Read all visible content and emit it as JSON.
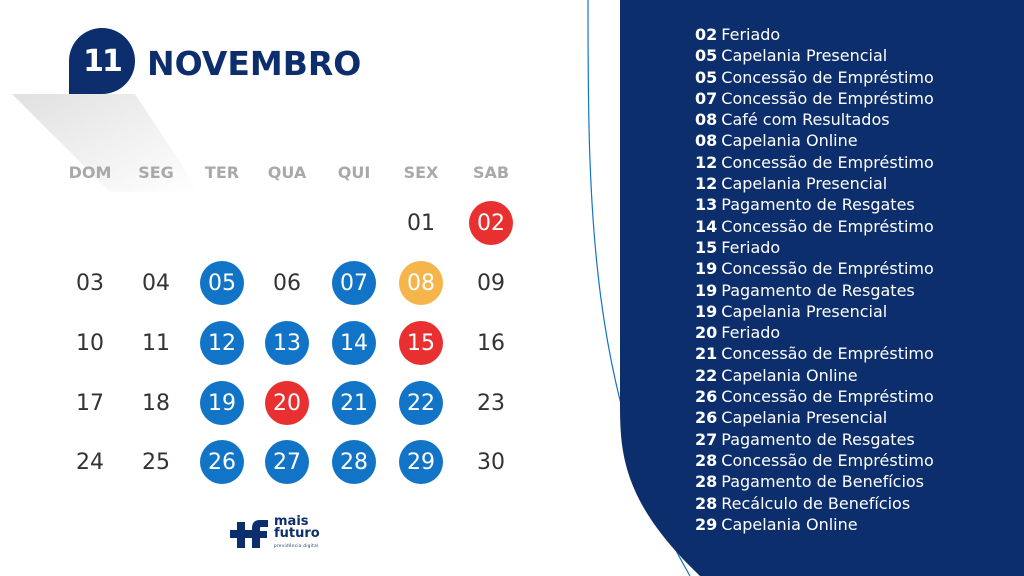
{
  "header": {
    "month_number": "11",
    "month_name": "NOVEMBRO"
  },
  "weekdays": [
    "DOM",
    "SEG",
    "TER",
    "QUA",
    "QUI",
    "SEX",
    "SAB"
  ],
  "colors": {
    "navy": "#0d2e6c",
    "blue": "#1274c7",
    "red": "#e83031",
    "orange": "#f5b54a",
    "weekday_gray": "#a9a9a9"
  },
  "weeks": [
    [
      null,
      null,
      null,
      null,
      null,
      {
        "day": "01",
        "mark": ""
      },
      {
        "day": "02",
        "mark": "red"
      }
    ],
    [
      {
        "day": "03",
        "mark": ""
      },
      {
        "day": "04",
        "mark": ""
      },
      {
        "day": "05",
        "mark": "blue"
      },
      {
        "day": "06",
        "mark": ""
      },
      {
        "day": "07",
        "mark": "blue"
      },
      {
        "day": "08",
        "mark": "orange"
      },
      {
        "day": "09",
        "mark": ""
      }
    ],
    [
      {
        "day": "10",
        "mark": ""
      },
      {
        "day": "11",
        "mark": ""
      },
      {
        "day": "12",
        "mark": "blue"
      },
      {
        "day": "13",
        "mark": "blue"
      },
      {
        "day": "14",
        "mark": "blue"
      },
      {
        "day": "15",
        "mark": "red"
      },
      {
        "day": "16",
        "mark": ""
      }
    ],
    [
      {
        "day": "17",
        "mark": ""
      },
      {
        "day": "18",
        "mark": ""
      },
      {
        "day": "19",
        "mark": "blue"
      },
      {
        "day": "20",
        "mark": "red"
      },
      {
        "day": "21",
        "mark": "blue"
      },
      {
        "day": "22",
        "mark": "blue"
      },
      {
        "day": "23",
        "mark": ""
      }
    ],
    [
      {
        "day": "24",
        "mark": ""
      },
      {
        "day": "25",
        "mark": ""
      },
      {
        "day": "26",
        "mark": "blue"
      },
      {
        "day": "27",
        "mark": "blue"
      },
      {
        "day": "28",
        "mark": "blue"
      },
      {
        "day": "29",
        "mark": "blue"
      },
      {
        "day": "30",
        "mark": ""
      }
    ]
  ],
  "events": [
    {
      "day": "02",
      "label": "Feriado"
    },
    {
      "day": "05",
      "label": "Capelania Presencial"
    },
    {
      "day": "05",
      "label": "Concessão de Empréstimo"
    },
    {
      "day": "07",
      "label": "Concessão de Empréstimo"
    },
    {
      "day": "08",
      "label": "Café com Resultados"
    },
    {
      "day": "08",
      "label": "Capelania Online"
    },
    {
      "day": "12",
      "label": "Concessão de Empréstimo"
    },
    {
      "day": "12",
      "label": "Capelania Presencial"
    },
    {
      "day": "13",
      "label": "Pagamento de Resgates"
    },
    {
      "day": "14",
      "label": "Concessão de Empréstimo"
    },
    {
      "day": "15",
      "label": "Feriado"
    },
    {
      "day": "19",
      "label": "Concessão de Empréstimo"
    },
    {
      "day": "19",
      "label": "Pagamento de Resgates"
    },
    {
      "day": "19",
      "label": "Capelania Presencial"
    },
    {
      "day": "20",
      "label": "Feriado"
    },
    {
      "day": "21",
      "label": "Concessão de Empréstimo"
    },
    {
      "day": "22",
      "label": "Capelania Online"
    },
    {
      "day": "26",
      "label": "Concessão de Empréstimo"
    },
    {
      "day": "26",
      "label": "Capelania Presencial"
    },
    {
      "day": "27",
      "label": "Pagamento de Resgates"
    },
    {
      "day": "28",
      "label": "Concessão de Empréstimo"
    },
    {
      "day": "28",
      "label": "Pagamento de Benefícios"
    },
    {
      "day": "28",
      "label": "Recálculo de Benefícios"
    },
    {
      "day": "29",
      "label": "Capelania Online"
    }
  ],
  "logo": {
    "line1": "mais",
    "line2": "futuro",
    "tagline": "previdência digital",
    "icon": "plus-f-logo-icon"
  }
}
